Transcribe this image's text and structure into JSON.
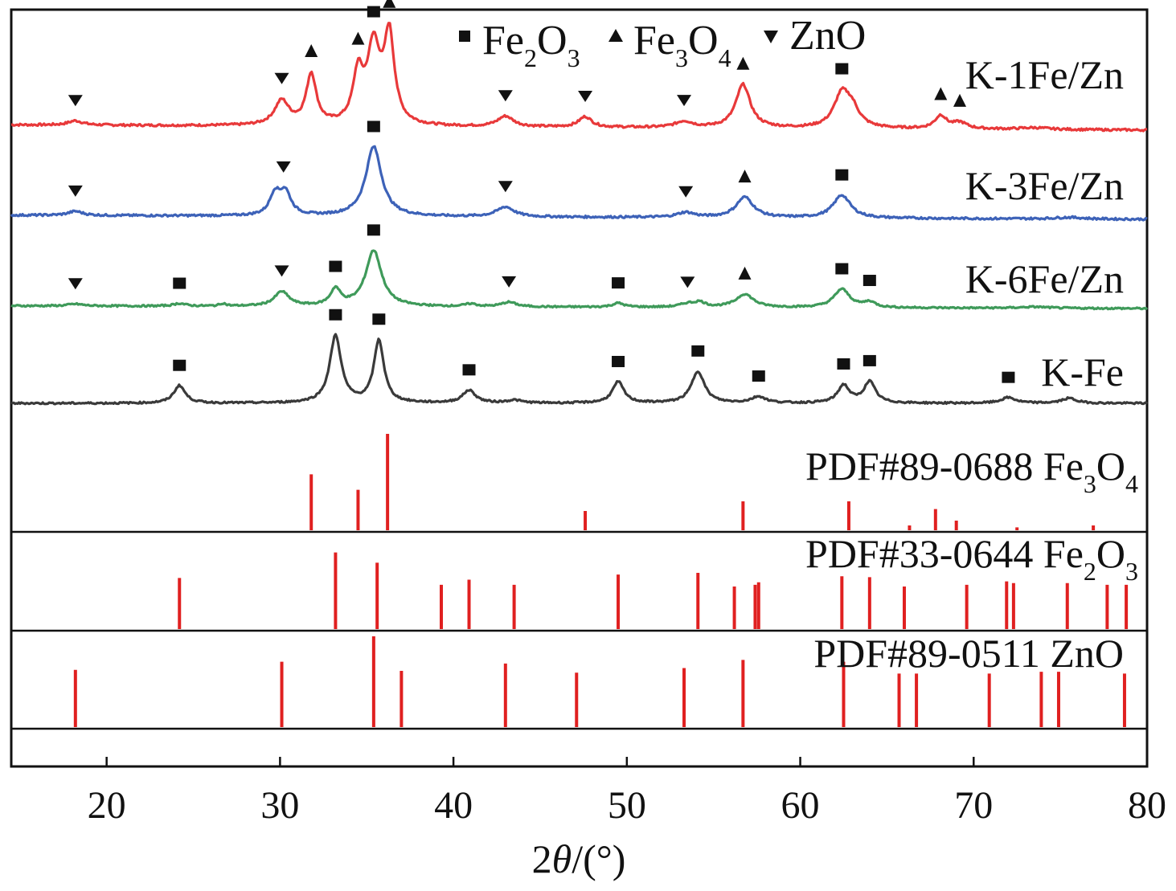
{
  "chart_data": {
    "type": "line",
    "xlabel_prefix": "2",
    "xlabel_theta": "θ",
    "xlabel_suffix": "/(°)",
    "xlim": [
      14.5,
      80
    ],
    "xticks": [
      "20",
      "30",
      "40",
      "50",
      "60",
      "70",
      "80"
    ],
    "legend": [
      {
        "marker": "square",
        "pre": "Fe",
        "s1": "2",
        "mid": "O",
        "s2": "3"
      },
      {
        "marker": "triangle-up",
        "pre": "Fe",
        "s1": "3",
        "mid": "O",
        "s2": "4"
      },
      {
        "marker": "triangle-down",
        "pre": "ZnO",
        "s1": "",
        "mid": "",
        "s2": ""
      }
    ],
    "series": [
      {
        "name": "K-1Fe/Zn",
        "color": "#e8393a",
        "baseline_start": 0.06,
        "baseline_end": 0.0,
        "peaks": [
          [
            18.2,
            0.05,
            0.5
          ],
          [
            30.1,
            0.28,
            0.5
          ],
          [
            31.8,
            0.58,
            0.35
          ],
          [
            34.5,
            0.55,
            0.35
          ],
          [
            35.4,
            0.88,
            0.45
          ],
          [
            36.3,
            1.0,
            0.35
          ],
          [
            43.0,
            0.12,
            0.55
          ],
          [
            47.6,
            0.12,
            0.45
          ],
          [
            53.3,
            0.07,
            0.6
          ],
          [
            56.7,
            0.5,
            0.5
          ],
          [
            62.4,
            0.38,
            0.55
          ],
          [
            63.0,
            0.18,
            0.5
          ],
          [
            68.1,
            0.15,
            0.4
          ],
          [
            69.2,
            0.07,
            0.5
          ],
          [
            73.5,
            0.02,
            1.0
          ]
        ],
        "peak_labels": [
          {
            "x": 18.2,
            "m": "tri-down"
          },
          {
            "x": 30.1,
            "m": "tri-down"
          },
          {
            "x": 31.8,
            "m": "tri-up"
          },
          {
            "x": 34.5,
            "m": "tri-up"
          },
          {
            "x": 35.4,
            "m": "square"
          },
          {
            "x": 36.3,
            "m": "tri-up"
          },
          {
            "x": 43.0,
            "m": "tri-down"
          },
          {
            "x": 47.6,
            "m": "tri-down"
          },
          {
            "x": 53.3,
            "m": "tri-down"
          },
          {
            "x": 56.7,
            "m": "tri-up"
          },
          {
            "x": 62.4,
            "m": "square"
          },
          {
            "x": 68.1,
            "m": "tri-up"
          },
          {
            "x": 69.2,
            "m": "tri-up"
          }
        ]
      },
      {
        "name": "K-3Fe/Zn",
        "color": "#3d62b8",
        "baseline_start": 0.05,
        "baseline_end": 0.0,
        "peaks": [
          [
            18.2,
            0.05,
            0.5
          ],
          [
            29.7,
            0.25,
            0.35
          ],
          [
            30.3,
            0.28,
            0.4
          ],
          [
            35.4,
            0.85,
            0.55
          ],
          [
            43.0,
            0.12,
            0.6
          ],
          [
            53.4,
            0.06,
            0.6
          ],
          [
            56.8,
            0.25,
            0.6
          ],
          [
            62.4,
            0.28,
            0.6
          ],
          [
            75.5,
            0.02,
            1.0
          ]
        ],
        "peak_labels": [
          {
            "x": 18.2,
            "m": "tri-down"
          },
          {
            "x": 30.2,
            "m": "tri-down"
          },
          {
            "x": 35.4,
            "m": "square"
          },
          {
            "x": 43.0,
            "m": "tri-down"
          },
          {
            "x": 53.4,
            "m": "tri-down"
          },
          {
            "x": 56.8,
            "m": "tri-up"
          },
          {
            "x": 62.4,
            "m": "square"
          }
        ]
      },
      {
        "name": "K-6Fe/Zn",
        "color": "#3f9a5a",
        "baseline_start": 0.04,
        "baseline_end": 0.0,
        "peaks": [
          [
            18.2,
            0.03,
            0.5
          ],
          [
            24.2,
            0.04,
            0.4
          ],
          [
            26.7,
            0.04,
            0.2
          ],
          [
            30.1,
            0.22,
            0.5
          ],
          [
            33.2,
            0.25,
            0.35
          ],
          [
            35.4,
            0.85,
            0.55
          ],
          [
            41.0,
            0.04,
            0.4
          ],
          [
            43.2,
            0.07,
            0.5
          ],
          [
            49.5,
            0.06,
            0.4
          ],
          [
            53.5,
            0.05,
            0.5
          ],
          [
            54.2,
            0.07,
            0.4
          ],
          [
            56.8,
            0.2,
            0.6
          ],
          [
            62.4,
            0.28,
            0.55
          ],
          [
            64.0,
            0.08,
            0.4
          ],
          [
            73.5,
            0.02,
            1.0
          ]
        ],
        "peak_labels": [
          {
            "x": 18.2,
            "m": "tri-down"
          },
          {
            "x": 24.2,
            "m": "square"
          },
          {
            "x": 30.1,
            "m": "tri-down"
          },
          {
            "x": 33.2,
            "m": "square"
          },
          {
            "x": 35.4,
            "m": "square"
          },
          {
            "x": 43.2,
            "m": "tri-down"
          },
          {
            "x": 49.5,
            "m": "square"
          },
          {
            "x": 53.5,
            "m": "tri-down"
          },
          {
            "x": 56.8,
            "m": "tri-up"
          },
          {
            "x": 62.4,
            "m": "square"
          },
          {
            "x": 64.0,
            "m": "square"
          }
        ]
      },
      {
        "name": "K-Fe",
        "color": "#3a3a3a",
        "baseline_start": 0.0,
        "baseline_end": 0.0,
        "peaks": [
          [
            24.2,
            0.25,
            0.4
          ],
          [
            33.2,
            0.95,
            0.4
          ],
          [
            35.7,
            0.88,
            0.35
          ],
          [
            40.9,
            0.18,
            0.45
          ],
          [
            43.5,
            0.04,
            0.5
          ],
          [
            49.5,
            0.3,
            0.4
          ],
          [
            54.1,
            0.45,
            0.45
          ],
          [
            57.6,
            0.09,
            0.5
          ],
          [
            62.5,
            0.25,
            0.4
          ],
          [
            64.0,
            0.3,
            0.4
          ],
          [
            72.0,
            0.08,
            0.5
          ],
          [
            75.5,
            0.07,
            0.5
          ]
        ],
        "peak_labels": [
          {
            "x": 24.2,
            "m": "square"
          },
          {
            "x": 33.2,
            "m": "square"
          },
          {
            "x": 35.7,
            "m": "square"
          },
          {
            "x": 40.9,
            "m": "square"
          },
          {
            "x": 49.5,
            "m": "square"
          },
          {
            "x": 54.1,
            "m": "square"
          },
          {
            "x": 57.6,
            "m": "square"
          },
          {
            "x": 62.5,
            "m": "square"
          },
          {
            "x": 64.0,
            "m": "square"
          },
          {
            "x": 72.0,
            "m": "square"
          }
        ]
      }
    ],
    "references": [
      {
        "code": "PDF#89-0688",
        "pre": "Fe",
        "s1": "3",
        "mid": "O",
        "s2": "4",
        "color": "#e02020",
        "lines": [
          [
            31.8,
            0.58
          ],
          [
            34.5,
            0.42
          ],
          [
            36.2,
            1.0
          ],
          [
            47.6,
            0.2
          ],
          [
            56.7,
            0.3
          ],
          [
            62.8,
            0.3
          ],
          [
            66.3,
            0.05
          ],
          [
            67.8,
            0.22
          ],
          [
            69.0,
            0.1
          ],
          [
            72.5,
            0.03
          ],
          [
            76.9,
            0.05
          ]
        ]
      },
      {
        "code": "PDF#33-0644",
        "pre": "Fe",
        "s1": "2",
        "mid": "O",
        "s2": "3",
        "color": "#e02020",
        "lines": [
          [
            24.2,
            0.6
          ],
          [
            33.2,
            0.9
          ],
          [
            35.6,
            0.78
          ],
          [
            39.3,
            0.52
          ],
          [
            40.9,
            0.58
          ],
          [
            43.5,
            0.52
          ],
          [
            49.5,
            0.64
          ],
          [
            54.1,
            0.66
          ],
          [
            56.2,
            0.5
          ],
          [
            57.4,
            0.52
          ],
          [
            57.6,
            0.55
          ],
          [
            62.4,
            0.62
          ],
          [
            64.0,
            0.61
          ],
          [
            66.0,
            0.5
          ],
          [
            69.6,
            0.52
          ],
          [
            71.9,
            0.56
          ],
          [
            72.3,
            0.54
          ],
          [
            75.4,
            0.54
          ],
          [
            77.7,
            0.52
          ],
          [
            78.8,
            0.52
          ]
        ]
      },
      {
        "code": "PDF#89-0511",
        "pre": "ZnO",
        "s1": "",
        "mid": "",
        "s2": "",
        "color": "#e02020",
        "lines": [
          [
            18.2,
            0.63
          ],
          [
            30.1,
            0.72
          ],
          [
            35.4,
            1.0
          ],
          [
            37.0,
            0.62
          ],
          [
            43.0,
            0.7
          ],
          [
            47.1,
            0.6
          ],
          [
            53.3,
            0.65
          ],
          [
            56.7,
            0.74
          ],
          [
            62.5,
            0.72
          ],
          [
            65.7,
            0.59
          ],
          [
            66.7,
            0.59
          ],
          [
            70.9,
            0.59
          ],
          [
            73.9,
            0.61
          ],
          [
            74.9,
            0.61
          ],
          [
            78.7,
            0.59
          ]
        ]
      }
    ]
  }
}
